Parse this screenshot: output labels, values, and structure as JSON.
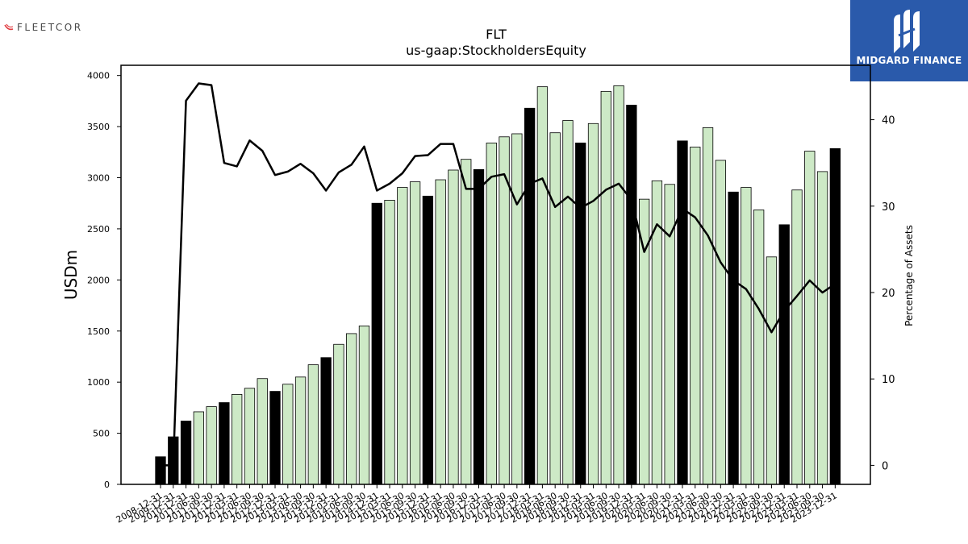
{
  "brand": {
    "left_logo_text": "FLEETCOR",
    "right_logo_text": "MIDGARD FINANCE",
    "accent": "#2a5aab"
  },
  "chart_data": {
    "type": "bar",
    "title": "FLT",
    "subtitle": "us-gaap:StockholdersEquity",
    "ylabel": "USDm",
    "y2label": "Percentage of Assets",
    "ylim": [
      0,
      4100
    ],
    "y2lim": [
      -2.2,
      46.3
    ],
    "yticks": [
      0,
      500,
      1000,
      1500,
      2000,
      2500,
      3000,
      3500,
      4000
    ],
    "y2ticks": [
      0,
      10,
      20,
      30,
      40
    ],
    "categories": [
      "2008-12-31",
      "2009-12-31",
      "2010-12-31",
      "2011-06-30",
      "2011-09-30",
      "2011-12-31",
      "2012-03-31",
      "2012-06-30",
      "2012-09-30",
      "2012-12-31",
      "2013-03-31",
      "2013-06-30",
      "2013-09-30",
      "2013-12-31",
      "2014-03-31",
      "2014-06-30",
      "2014-09-30",
      "2014-12-31",
      "2015-03-31",
      "2015-06-30",
      "2015-09-30",
      "2015-12-31",
      "2016-03-31",
      "2016-06-30",
      "2016-09-30",
      "2016-12-31",
      "2017-03-31",
      "2017-06-30",
      "2017-09-30",
      "2017-12-31",
      "2018-03-31",
      "2018-06-30",
      "2018-09-30",
      "2018-12-31",
      "2019-03-31",
      "2019-06-30",
      "2019-09-30",
      "2019-12-31",
      "2020-03-31",
      "2020-06-30",
      "2020-09-30",
      "2020-12-31",
      "2021-03-31",
      "2021-06-30",
      "2021-09-30",
      "2021-12-31",
      "2022-03-31",
      "2022-06-30",
      "2022-09-30",
      "2022-12-31",
      "2023-03-31",
      "2023-06-30",
      "2023-09-30",
      "2023-12-31"
    ],
    "series": [
      {
        "kind": "bar",
        "values": [
          270,
          465,
          620,
          710,
          760,
          800,
          880,
          940,
          1035,
          910,
          980,
          1050,
          1170,
          1240,
          1370,
          1475,
          1550,
          2750,
          2780,
          2905,
          2960,
          2820,
          2980,
          3075,
          3180,
          3080,
          3340,
          3400,
          3430,
          3680,
          3890,
          3440,
          3560,
          3340,
          3530,
          3845,
          3900,
          3710,
          2790,
          2970,
          2935,
          3360,
          3300,
          3490,
          3170,
          2860,
          2905,
          2685,
          2225,
          2540,
          2880,
          3260,
          3060,
          3285
        ],
        "year_end_color": "#000000",
        "quarter_color": "#cde9c6"
      },
      {
        "kind": "line",
        "axis": "right",
        "color": "#000000",
        "values": [
          0,
          0,
          42.2,
          44.2,
          44.0,
          35.0,
          34.6,
          37.6,
          36.4,
          33.6,
          34.0,
          34.9,
          33.8,
          31.8,
          33.9,
          34.8,
          36.9,
          31.8,
          32.6,
          33.8,
          35.8,
          35.9,
          37.2,
          37.2,
          32.0,
          32.0,
          33.4,
          33.7,
          30.2,
          32.6,
          33.2,
          29.9,
          31.1,
          29.8,
          30.6,
          31.9,
          32.6,
          30.7,
          24.7,
          27.9,
          26.5,
          29.7,
          28.7,
          26.6,
          23.5,
          21.4,
          20.4,
          18.1,
          15.4,
          17.9,
          19.6,
          21.4,
          20.0,
          21.0
        ]
      }
    ],
    "grid": false,
    "legend": "none"
  }
}
